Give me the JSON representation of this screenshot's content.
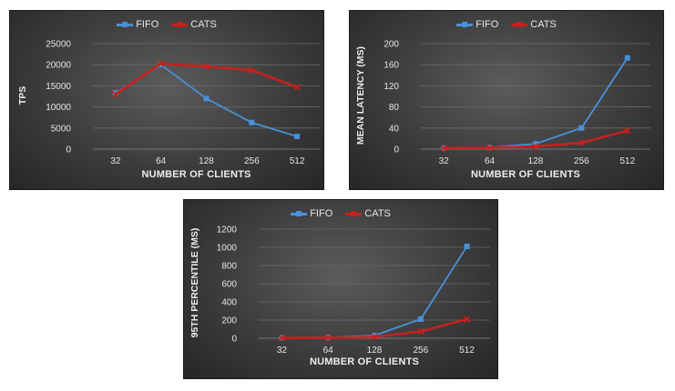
{
  "chart_data": [
    {
      "type": "line",
      "title": "",
      "xlabel": "NUMBER OF CLIENTS",
      "ylabel": "TPS",
      "categories": [
        "32",
        "64",
        "128",
        "256",
        "512"
      ],
      "ylim": [
        0,
        25000
      ],
      "yticks": [
        0,
        5000,
        10000,
        15000,
        20000,
        25000
      ],
      "grid": true,
      "legend": "top-center",
      "series": [
        {
          "name": "FIFO",
          "color": "#4a90d9",
          "marker": "square",
          "values": [
            13300,
            20000,
            12000,
            6300,
            3000
          ]
        },
        {
          "name": "CATS",
          "color": "#c8201e",
          "marker": "x",
          "values": [
            13000,
            20300,
            19600,
            18700,
            14700
          ]
        }
      ]
    },
    {
      "type": "line",
      "title": "",
      "xlabel": "NUMBER OF CLIENTS",
      "ylabel": "MEAN LATENCY (MS)",
      "categories": [
        "32",
        "64",
        "128",
        "256",
        "512"
      ],
      "ylim": [
        0,
        200
      ],
      "yticks": [
        0,
        40,
        80,
        120,
        160,
        200
      ],
      "grid": true,
      "legend": "top-center",
      "series": [
        {
          "name": "FIFO",
          "color": "#4a90d9",
          "marker": "square",
          "values": [
            2,
            3,
            10,
            40,
            173
          ]
        },
        {
          "name": "CATS",
          "color": "#c8201e",
          "marker": "x",
          "values": [
            2,
            2.5,
            5,
            12,
            35
          ]
        }
      ]
    },
    {
      "type": "line",
      "title": "",
      "xlabel": "NUMBER OF CLIENTS",
      "ylabel": "95TH PERCENTILE (MS)",
      "categories": [
        "32",
        "64",
        "128",
        "256",
        "512"
      ],
      "ylim": [
        0,
        1200
      ],
      "yticks": [
        0,
        200,
        400,
        600,
        800,
        1000,
        1200
      ],
      "grid": true,
      "legend": "top-center",
      "series": [
        {
          "name": "FIFO",
          "color": "#4a90d9",
          "marker": "square",
          "values": [
            5,
            8,
            30,
            210,
            1010
          ]
        },
        {
          "name": "CATS",
          "color": "#c8201e",
          "marker": "x",
          "values": [
            4,
            6,
            15,
            75,
            210
          ]
        }
      ]
    }
  ]
}
